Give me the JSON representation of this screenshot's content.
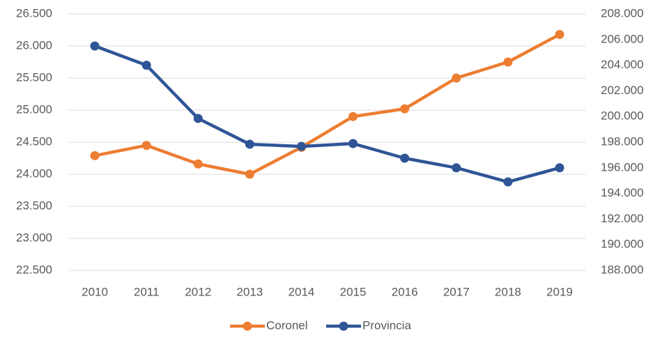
{
  "chart_data": {
    "type": "line",
    "categories": [
      "2010",
      "2011",
      "2012",
      "2013",
      "2014",
      "2015",
      "2016",
      "2017",
      "2018",
      "2019"
    ],
    "series": [
      {
        "name": "Coronel",
        "color": "#ed7d31",
        "values": [
          24290,
          24450,
          24160,
          24000,
          24420,
          24900,
          25020,
          25500,
          25750,
          26180
        ]
      },
      {
        "name": "Provincia",
        "color": "#2f5597",
        "axis": "y2",
        "values": [
          205500,
          204000,
          199850,
          197840,
          197670,
          197890,
          196750,
          196000,
          194900,
          196000
        ]
      }
    ],
    "ylim": [
      22500,
      26500
    ],
    "yticks": [
      {
        "value": 22500,
        "label": "22.500"
      },
      {
        "value": 23000,
        "label": "23.000"
      },
      {
        "value": 23500,
        "label": "23.500"
      },
      {
        "value": 24000,
        "label": "24.000"
      },
      {
        "value": 24500,
        "label": "24.500"
      },
      {
        "value": 25000,
        "label": "25.000"
      },
      {
        "value": 25500,
        "label": "25.500"
      },
      {
        "value": 26000,
        "label": "26.000"
      },
      {
        "value": 26500,
        "label": "26.500"
      }
    ],
    "y2lim": [
      188000,
      208000
    ],
    "y2ticks": [
      {
        "value": 188000,
        "label": "188.000"
      },
      {
        "value": 190000,
        "label": "190.000"
      },
      {
        "value": 192000,
        "label": "192.000"
      },
      {
        "value": 194000,
        "label": "194.000"
      },
      {
        "value": 196000,
        "label": "196.000"
      },
      {
        "value": 198000,
        "label": "198.000"
      },
      {
        "value": 200000,
        "label": "200.000"
      },
      {
        "value": 202000,
        "label": "202.000"
      },
      {
        "value": 204000,
        "label": "204.000"
      },
      {
        "value": 206000,
        "label": "206.000"
      },
      {
        "value": 208000,
        "label": "208.000"
      }
    ],
    "grid": true,
    "legend": "bottom"
  }
}
